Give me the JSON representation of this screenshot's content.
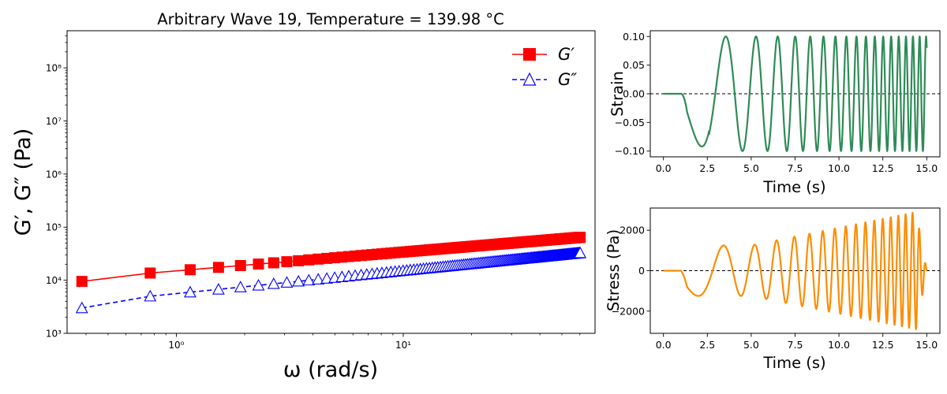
{
  "chart_data": [
    {
      "type": "scatter",
      "title": "Arbitrary Wave 19, Temperature = 139.98 °C",
      "xlabel": "ω (rad/s)",
      "ylabel": "G′, G″ (Pa)",
      "xscale": "log",
      "yscale": "log",
      "xlim": [
        0.33,
        70
      ],
      "ylim": [
        1000,
        500000000
      ],
      "x_ticks": [
        {
          "value": 1,
          "label": "10⁰"
        },
        {
          "value": 10,
          "label": "10¹"
        }
      ],
      "y_ticks": [
        {
          "value": 1000,
          "label": "10³"
        },
        {
          "value": 10000,
          "label": "10⁴"
        },
        {
          "value": 100000,
          "label": "10⁵"
        },
        {
          "value": 1000000,
          "label": "10⁶"
        },
        {
          "value": 10000000,
          "label": "10⁷"
        },
        {
          "value": 100000000,
          "label": "10⁸"
        }
      ],
      "legend": "top-right",
      "grid": false,
      "omega_step": 0.3835,
      "point_count": 157,
      "series": [
        {
          "name": "G′",
          "color": "#ff0000",
          "marker": "square-filled",
          "line": "solid",
          "power_law": {
            "a": 15000,
            "b": 0.355
          },
          "y_at_first": 9500
        },
        {
          "name": "G″",
          "color": "#0000ff",
          "marker": "triangle-open",
          "line": "dashed",
          "power_law": {
            "a": 5600,
            "b": 0.43
          },
          "y_at_first": 3000
        }
      ]
    },
    {
      "type": "line",
      "xlabel": "Time (s)",
      "ylabel": "Strain",
      "xlim": [
        -0.75,
        15.75
      ],
      "ylim": [
        -0.11,
        0.11
      ],
      "x_ticks": [
        {
          "value": 0,
          "label": "0.0"
        },
        {
          "value": 2.5,
          "label": "2.5"
        },
        {
          "value": 5,
          "label": "5.0"
        },
        {
          "value": 7.5,
          "label": "7.5"
        },
        {
          "value": 10,
          "label": "10.0"
        },
        {
          "value": 12.5,
          "label": "12.5"
        },
        {
          "value": 15,
          "label": "15.0"
        }
      ],
      "y_ticks": [
        {
          "value": -0.1,
          "label": "−0.10"
        },
        {
          "value": -0.05,
          "label": "−0.05"
        },
        {
          "value": 0,
          "label": "0.00"
        },
        {
          "value": 0.05,
          "label": "0.05"
        },
        {
          "value": 0.1,
          "label": "0.10"
        }
      ],
      "zero_line": "dashed",
      "series": [
        {
          "color": "#2e8b57",
          "amplitude": 0.1,
          "t_start": 1.0,
          "t_end": 15.0,
          "first_min": [
            1.6,
            -0.09
          ]
        }
      ]
    },
    {
      "type": "line",
      "xlabel": "Time (s)",
      "ylabel": "Stress (Pa)",
      "xlim": [
        -0.75,
        15.75
      ],
      "ylim": [
        -3100,
        3100
      ],
      "x_ticks": [
        {
          "value": 0,
          "label": "0.0"
        },
        {
          "value": 2.5,
          "label": "2.5"
        },
        {
          "value": 5,
          "label": "5.0"
        },
        {
          "value": 7.5,
          "label": "7.5"
        },
        {
          "value": 10,
          "label": "10.0"
        },
        {
          "value": 12.5,
          "label": "12.5"
        },
        {
          "value": 15,
          "label": "15.0"
        }
      ],
      "y_ticks": [
        {
          "value": -2000,
          "label": "−2000"
        },
        {
          "value": 0,
          "label": "0"
        },
        {
          "value": 2000,
          "label": "2000"
        }
      ],
      "zero_line": "dashed",
      "series": [
        {
          "color": "#ff8c00",
          "peak_at_5s": 1250,
          "peak_near_end": 2900,
          "first_min": [
            1.6,
            -1300
          ]
        }
      ]
    }
  ]
}
